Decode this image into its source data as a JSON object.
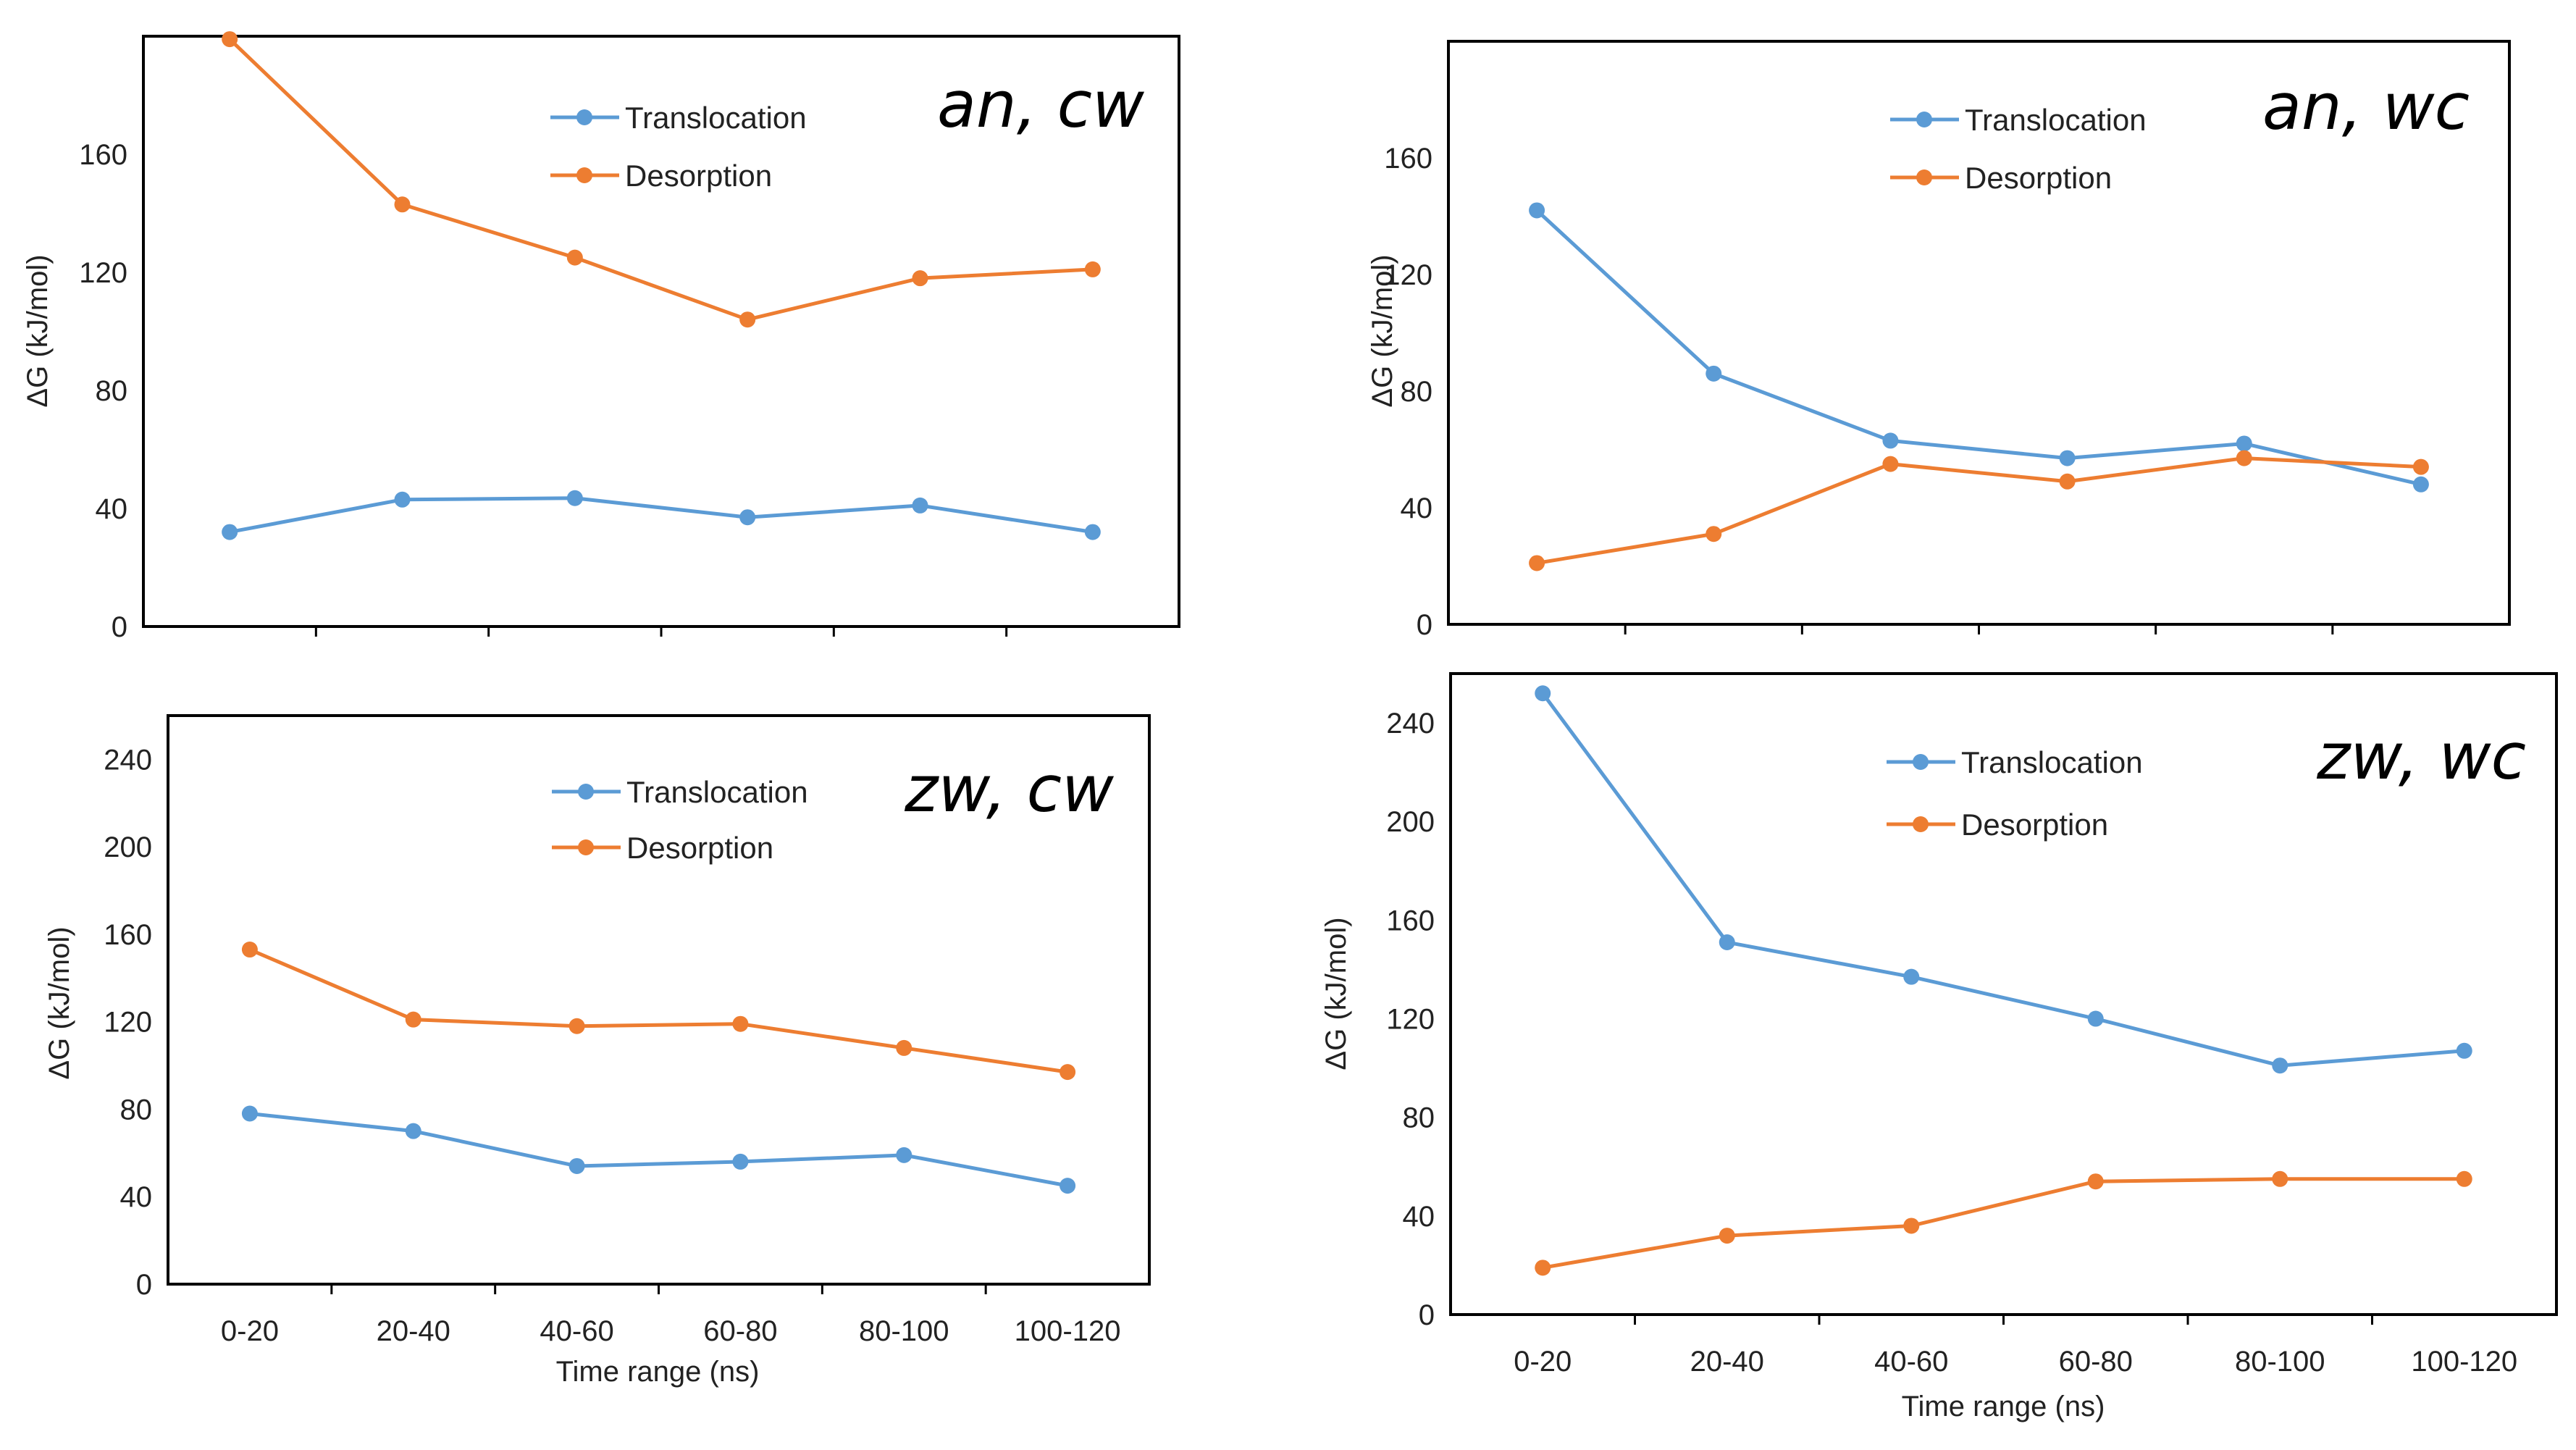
{
  "colors": {
    "translocation": "#5b9bd5",
    "desorption": "#ed7d31"
  },
  "chart_data": [
    {
      "type": "line",
      "title": "an, cw",
      "categories": [
        "0-20",
        "20-40",
        "40-60",
        "60-80",
        "80-100",
        "100-120"
      ],
      "xlabel": "",
      "ylabel": "ΔG (kJ/mol)",
      "ylim": [
        0,
        200
      ],
      "yticks": [
        0,
        40,
        80,
        120,
        160
      ],
      "show_xticklabels": false,
      "series": [
        {
          "name": "Translocation",
          "values": [
            32,
            43,
            43.5,
            37,
            41,
            32
          ]
        },
        {
          "name": "Desorption",
          "values": [
            199,
            143,
            125,
            104,
            118,
            121
          ]
        }
      ]
    },
    {
      "type": "line",
      "title": "an, wc",
      "categories": [
        "0-20",
        "20-40",
        "40-60",
        "60-80",
        "80-100",
        "100-120"
      ],
      "xlabel": "",
      "ylabel": "ΔG (kJ/mol)",
      "ylim": [
        0,
        200
      ],
      "yticks": [
        0,
        40,
        80,
        120,
        160
      ],
      "show_xticklabels": false,
      "series": [
        {
          "name": "Translocation",
          "values": [
            142,
            86,
            63,
            57,
            62,
            48
          ]
        },
        {
          "name": "Desorption",
          "values": [
            21,
            31,
            55,
            49,
            57,
            54
          ]
        }
      ]
    },
    {
      "type": "line",
      "title": "zw, cw",
      "categories": [
        "0-20",
        "20-40",
        "40-60",
        "60-80",
        "80-100",
        "100-120"
      ],
      "xlabel": "Time range (ns)",
      "ylabel": "ΔG (kJ/mol)",
      "ylim": [
        0,
        260
      ],
      "yticks": [
        0,
        40,
        80,
        120,
        160,
        200,
        240
      ],
      "show_xticklabels": true,
      "series": [
        {
          "name": "Translocation",
          "values": [
            78,
            70,
            54,
            56,
            59,
            45
          ]
        },
        {
          "name": "Desorption",
          "values": [
            153,
            121,
            118,
            119,
            108,
            97
          ]
        }
      ]
    },
    {
      "type": "line",
      "title": "zw, wc",
      "categories": [
        "0-20",
        "20-40",
        "40-60",
        "60-80",
        "80-100",
        "100-120"
      ],
      "xlabel": "Time range (ns)",
      "ylabel": "ΔG (kJ/mol)",
      "ylim": [
        0,
        260
      ],
      "yticks": [
        0,
        40,
        80,
        120,
        160,
        200,
        240
      ],
      "show_xticklabels": true,
      "series": [
        {
          "name": "Translocation",
          "values": [
            252,
            151,
            137,
            120,
            101,
            107
          ]
        },
        {
          "name": "Desorption",
          "values": [
            19,
            32,
            36,
            54,
            55,
            55
          ]
        }
      ]
    }
  ]
}
